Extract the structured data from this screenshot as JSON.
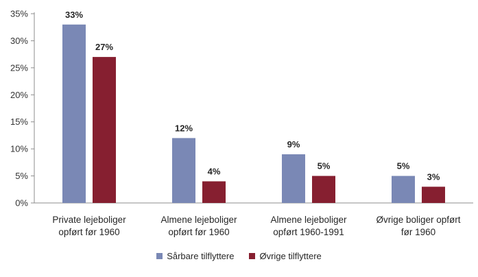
{
  "chart_data": {
    "type": "bar",
    "categories": [
      [
        "Private lejeboliger",
        "opført før 1960"
      ],
      [
        "Almene lejeboliger",
        "opført før 1960"
      ],
      [
        "Almene lejeboliger",
        "opført 1960-1991"
      ],
      [
        "Øvrige boliger opført",
        "før 1960"
      ]
    ],
    "series": [
      {
        "name": "Sårbare tilflyttere",
        "color": "#7a88b5",
        "values": [
          33,
          12,
          9,
          5
        ],
        "labels": [
          "33%",
          "12%",
          "9%",
          "5%"
        ]
      },
      {
        "name": "Øvrige tilflyttere",
        "color": "#861f30",
        "values": [
          27,
          4,
          5,
          3
        ],
        "labels": [
          "27%",
          "4%",
          "5%",
          "3%"
        ]
      }
    ],
    "ylim": [
      0,
      35
    ],
    "yticks": [
      0,
      5,
      10,
      15,
      20,
      25,
      30,
      35
    ],
    "ytick_labels": [
      "0%",
      "5%",
      "10%",
      "15%",
      "20%",
      "25%",
      "30%",
      "35%"
    ],
    "grid": false,
    "legend_position": "bottom",
    "title": "",
    "xlabel": "",
    "ylabel": ""
  }
}
